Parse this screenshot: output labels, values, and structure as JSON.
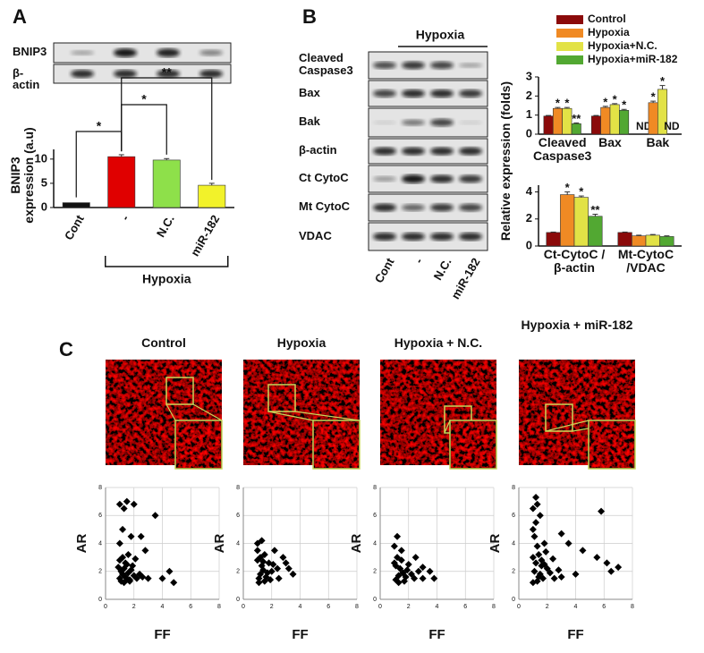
{
  "panels": [
    "A",
    "B",
    "C"
  ],
  "blot_a": {
    "labels": [
      "BNIP3",
      "β-actin"
    ]
  },
  "blot_b": {
    "hypoxia_label": "Hypoxia",
    "labels": [
      "Cleaved Caspase3",
      "Bax",
      "Bak",
      "β-actin",
      "Ct CytoC",
      "Mt CytoC",
      "VDAC"
    ],
    "lanes": [
      "Cont",
      "-",
      "N.C.",
      "miR-182"
    ]
  },
  "chart_data": [
    {
      "type": "bar",
      "y_label": "BNIP3 expression (a.u)",
      "categories": [
        "Cont",
        "-",
        "N.C.",
        "miR-182"
      ],
      "values": [
        1,
        10.5,
        9.8,
        4.6
      ],
      "errors": [
        0,
        0.4,
        0.3,
        0.4
      ],
      "colors": [
        "#111111",
        "#e00000",
        "#8ee04a",
        "#f2f22a"
      ],
      "ylim": [
        0,
        12
      ],
      "yticks": [
        0,
        5,
        10
      ],
      "comparisons": [
        {
          "from": 0,
          "to": 1,
          "text": "*"
        },
        {
          "from": 1,
          "to": 2,
          "text": "*"
        },
        {
          "from": 1,
          "to": 3,
          "text": "**"
        }
      ],
      "group": {
        "label": "Hypoxia",
        "from": 1,
        "to": 3
      }
    },
    {
      "type": "bar",
      "y_label": "Relative expression (folds)",
      "categories": [
        "Cleaved Caspase3",
        "Bax",
        "Bak"
      ],
      "ylim": [
        0,
        3
      ],
      "yticks": [
        0,
        1,
        2,
        3
      ],
      "series": [
        {
          "name": "Control",
          "color": "#8b0a0a",
          "values": [
            0.95,
            0.95,
            null
          ],
          "errors": [
            0.03,
            0.03,
            null
          ],
          "value_labels": [
            null,
            null,
            "ND"
          ]
        },
        {
          "name": "Hypoxia",
          "color": "#f08a24",
          "values": [
            1.35,
            1.4,
            1.65
          ],
          "errors": [
            0.05,
            0.06,
            0.08
          ],
          "significance": [
            "*",
            "*",
            "*"
          ]
        },
        {
          "name": "Hypoxia+N.C.",
          "color": "#e2e246",
          "values": [
            1.35,
            1.55,
            2.35
          ],
          "errors": [
            0.05,
            0.05,
            0.2
          ],
          "significance": [
            "*",
            "*",
            "*"
          ]
        },
        {
          "name": "Hypoxia+miR-182",
          "color": "#52a832",
          "values": [
            0.55,
            1.25,
            null
          ],
          "errors": [
            0.04,
            0.05,
            null
          ],
          "significance": [
            "**",
            "*",
            null
          ],
          "value_labels": [
            null,
            null,
            "ND"
          ]
        }
      ]
    },
    {
      "type": "bar",
      "categories": [
        "Ct-CytoC /β-actin",
        "Mt-CytoC /VDAC"
      ],
      "ylim": [
        0,
        4.5
      ],
      "yticks": [
        0,
        2,
        4
      ],
      "series": [
        {
          "color": "#8b0a0a",
          "values": [
            1,
            1
          ],
          "errors": [
            0.03,
            0.03
          ]
        },
        {
          "color": "#f08a24",
          "values": [
            3.8,
            0.75
          ],
          "errors": [
            0.2,
            0.05
          ],
          "significance": [
            "*",
            null
          ]
        },
        {
          "color": "#e2e246",
          "values": [
            3.6,
            0.8
          ],
          "errors": [
            0.1,
            0.05
          ],
          "significance": [
            "*",
            null
          ]
        },
        {
          "color": "#52a832",
          "values": [
            2.2,
            0.7
          ],
          "errors": [
            0.15,
            0.05
          ],
          "significance": [
            "**",
            null
          ]
        }
      ]
    },
    {
      "type": "scatter",
      "title": "Control",
      "x_label": "FF",
      "y_label": "AR",
      "xlim": [
        0,
        8
      ],
      "ylim": [
        0,
        8
      ],
      "xticks": [
        0,
        2,
        4,
        6,
        8
      ],
      "yticks": [
        0,
        2,
        4,
        6,
        8
      ],
      "grid": true,
      "x": [
        1,
        1.5,
        1.3,
        2,
        3.5,
        1.2,
        1.8,
        2.5,
        1,
        2.8,
        4.5,
        4,
        3,
        4.8,
        1,
        1.1,
        1.2,
        1.3,
        1.4,
        1.5,
        1.6,
        1.7,
        1.8,
        2,
        2.2,
        2.4,
        1,
        1.2,
        1.4,
        1.6,
        1.9,
        2.1,
        1.1,
        1.3,
        1.5,
        2.6,
        1.7,
        0.9
      ],
      "y": [
        6.8,
        7,
        6.5,
        6.8,
        6,
        5,
        4.5,
        4.5,
        4,
        3.5,
        2,
        1.5,
        1.5,
        1.2,
        1.5,
        2,
        1.8,
        2.2,
        1.6,
        2.5,
        1.9,
        1.4,
        2.1,
        1.7,
        1.5,
        1.8,
        2.8,
        3,
        2.6,
        3.2,
        2.4,
        2.9,
        1.3,
        1.2,
        1.4,
        1.6,
        1.3,
        2.3
      ]
    },
    {
      "type": "scatter",
      "title": "Hypoxia",
      "x_label": "FF",
      "y_label": "AR",
      "xlim": [
        0,
        8
      ],
      "ylim": [
        0,
        8
      ],
      "xticks": [
        0,
        2,
        4,
        6,
        8
      ],
      "yticks": [
        0,
        2,
        4,
        6,
        8
      ],
      "grid": true,
      "x": [
        1,
        1.3,
        1,
        1.5,
        2.2,
        2.8,
        3.2,
        3.5,
        2.5,
        2,
        1.1,
        1.2,
        1.4,
        1.6,
        1.8,
        1,
        1.3,
        1.5,
        1.7,
        2.1,
        1.2,
        1.4,
        2.4,
        1.1,
        1.9,
        3
      ],
      "y": [
        4,
        4.2,
        3.5,
        3.2,
        3.5,
        3,
        2.2,
        1.8,
        1.5,
        2,
        1.5,
        1.8,
        2.1,
        1.6,
        2.6,
        2.8,
        2.4,
        1.3,
        1.9,
        2.5,
        3,
        2.7,
        2.2,
        1.2,
        1.4,
        2.6
      ]
    },
    {
      "type": "scatter",
      "title": "Hypoxia  + N.C.",
      "x_label": "FF",
      "y_label": "AR",
      "xlim": [
        0,
        8
      ],
      "ylim": [
        0,
        8
      ],
      "xticks": [
        0,
        2,
        4,
        6,
        8
      ],
      "yticks": [
        0,
        2,
        4,
        6,
        8
      ],
      "grid": true,
      "x": [
        1.2,
        1,
        1.5,
        2.5,
        2,
        3,
        3.5,
        3,
        3.8,
        1.1,
        1.3,
        1.4,
        1.6,
        1.8,
        2.2,
        1,
        1.2,
        1.5,
        1.7,
        1.9,
        2.4,
        1.1,
        1.3,
        2.7
      ],
      "y": [
        4.5,
        3.8,
        3.5,
        3,
        2.5,
        2.3,
        2,
        1.5,
        1.5,
        1.4,
        1.7,
        2.2,
        1.9,
        1.6,
        1.8,
        2.6,
        3,
        2.8,
        1.3,
        2.1,
        1.5,
        2.4,
        1.2,
        2
      ]
    },
    {
      "type": "scatter",
      "title": "Hypoxia + miR-182",
      "x_label": "FF",
      "y_label": "AR",
      "xlim": [
        0,
        8
      ],
      "ylim": [
        0,
        8
      ],
      "xticks": [
        0,
        2,
        4,
        6,
        8
      ],
      "yticks": [
        0,
        2,
        4,
        6,
        8
      ],
      "grid": true,
      "x": [
        1.2,
        1.3,
        1,
        1.5,
        5.8,
        1.2,
        3,
        3.5,
        1.8,
        4.5,
        5.5,
        6.2,
        7,
        6.5,
        4,
        3,
        2.5,
        1,
        1.1,
        1.3,
        1.4,
        1.6,
        1.8,
        2,
        2.2,
        1,
        1.2,
        1.5,
        1.7,
        2.4,
        1.1,
        1.3,
        1.9,
        2.8,
        1.4,
        1,
        1.6
      ],
      "y": [
        7.3,
        6.8,
        6.5,
        6,
        6.3,
        5.5,
        4.7,
        4,
        4,
        3.5,
        3,
        2.6,
        2.3,
        2,
        1.8,
        1.6,
        1.5,
        5,
        4.5,
        3.8,
        3.2,
        2.8,
        2.5,
        2.2,
        1.9,
        3,
        2.6,
        1.8,
        1.5,
        2.9,
        2,
        1.3,
        3.4,
        2.1,
        1.6,
        1.2,
        2.4
      ]
    }
  ]
}
